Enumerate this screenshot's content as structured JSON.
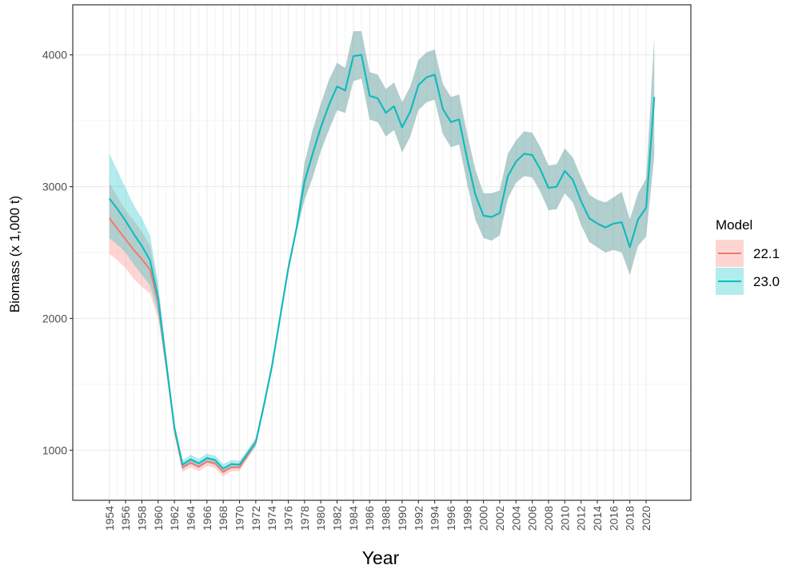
{
  "chart_data": {
    "type": "line",
    "title": "",
    "xlabel": "Year",
    "ylabel": "Biomass (x 1,000 t)",
    "xlim": [
      1949.5,
      2025.5
    ],
    "ylim": [
      620,
      4380
    ],
    "x_ticks": [
      1954,
      1956,
      1958,
      1960,
      1962,
      1964,
      1966,
      1968,
      1970,
      1972,
      1974,
      1976,
      1978,
      1980,
      1982,
      1984,
      1986,
      1988,
      1990,
      1992,
      1994,
      1996,
      1998,
      2000,
      2002,
      2004,
      2006,
      2008,
      2010,
      2012,
      2014,
      2016,
      2018,
      2020
    ],
    "y_ticks": [
      1000,
      2000,
      3000,
      4000
    ],
    "grid": true,
    "legend": {
      "title": "Model",
      "position": "right"
    },
    "x": [
      1954,
      1955,
      1956,
      1957,
      1958,
      1959,
      1960,
      1961,
      1962,
      1963,
      1964,
      1965,
      1966,
      1967,
      1968,
      1969,
      1970,
      1971,
      1972,
      1973,
      1974,
      1975,
      1976,
      1977,
      1978,
      1979,
      1980,
      1981,
      1982,
      1983,
      1984,
      1985,
      1986,
      1987,
      1988,
      1989,
      1990,
      1991,
      1992,
      1993,
      1994,
      1995,
      1996,
      1997,
      1998,
      1999,
      2000,
      2001,
      2002,
      2003,
      2004,
      2005,
      2006,
      2007,
      2008,
      2009,
      2010,
      2011,
      2012,
      2013,
      2014,
      2015,
      2016,
      2017,
      2018,
      2019,
      2020,
      2021
    ],
    "series": [
      {
        "name": "22.1",
        "color": "#F8766D",
        "fill": "#F8766D",
        "values": [
          2760,
          2680,
          2600,
          2520,
          2450,
          2370,
          2120,
          1650,
          1160,
          870,
          905,
          875,
          915,
          900,
          835,
          870,
          870,
          965,
          1060,
          1340,
          1640,
          2010,
          2380,
          2680,
          3040,
          3250,
          3450,
          3620,
          3760,
          3730,
          3990,
          4000,
          3690,
          3670,
          3560,
          3610,
          3450,
          3570,
          3770,
          3830,
          3850,
          3590,
          3490,
          3510,
          3210,
          2940,
          2780,
          2770,
          2800,
          3080,
          3190,
          3250,
          3240,
          3130,
          2990,
          3000,
          3120,
          3050,
          2890,
          2760,
          2720,
          2690,
          2720,
          2730,
          2540,
          2750,
          2840,
          3680
        ],
        "lower": [
          2490,
          2440,
          2380,
          2300,
          2240,
          2190,
          2000,
          1590,
          1120,
          835,
          870,
          840,
          880,
          865,
          800,
          840,
          840,
          935,
          1030,
          1310,
          1610,
          1980,
          2350,
          2650,
          2900,
          3070,
          3270,
          3430,
          3580,
          3560,
          3800,
          3820,
          3510,
          3490,
          3380,
          3430,
          3260,
          3380,
          3580,
          3640,
          3660,
          3400,
          3300,
          3320,
          3020,
          2750,
          2610,
          2590,
          2630,
          2910,
          3030,
          3080,
          3070,
          2960,
          2820,
          2830,
          2950,
          2880,
          2710,
          2580,
          2540,
          2500,
          2520,
          2500,
          2330,
          2550,
          2620,
          3230
        ],
        "upper": [
          3030,
          2920,
          2820,
          2740,
          2660,
          2550,
          2240,
          1710,
          1200,
          905,
          940,
          910,
          950,
          935,
          870,
          900,
          900,
          995,
          1090,
          1370,
          1670,
          2040,
          2410,
          2710,
          3180,
          3430,
          3630,
          3810,
          3940,
          3900,
          4180,
          4180,
          3870,
          3850,
          3740,
          3790,
          3640,
          3760,
          3960,
          4020,
          4040,
          3780,
          3680,
          3700,
          3400,
          3130,
          2950,
          2950,
          2970,
          3250,
          3350,
          3420,
          3410,
          3300,
          3160,
          3170,
          3290,
          3220,
          3070,
          2940,
          2900,
          2880,
          2920,
          2960,
          2750,
          2950,
          3060,
          4130
        ]
      },
      {
        "name": "23.0",
        "color": "#00BFC4",
        "fill": "#00BFC4",
        "values": [
          2910,
          2830,
          2740,
          2640,
          2550,
          2440,
          2150,
          1660,
          1170,
          890,
          930,
          900,
          940,
          925,
          860,
          895,
          890,
          975,
          1060,
          1340,
          1640,
          2010,
          2380,
          2680,
          3040,
          3250,
          3450,
          3620,
          3760,
          3730,
          3990,
          4000,
          3690,
          3670,
          3560,
          3610,
          3450,
          3570,
          3770,
          3830,
          3850,
          3590,
          3490,
          3510,
          3210,
          2940,
          2780,
          2770,
          2800,
          3080,
          3190,
          3250,
          3240,
          3130,
          2990,
          3000,
          3120,
          3050,
          2890,
          2760,
          2720,
          2690,
          2720,
          2730,
          2540,
          2750,
          2840,
          3680
        ],
        "lower": [
          2610,
          2560,
          2500,
          2410,
          2330,
          2250,
          2030,
          1600,
          1130,
          855,
          895,
          865,
          905,
          890,
          825,
          865,
          860,
          945,
          1030,
          1310,
          1610,
          1980,
          2350,
          2650,
          2900,
          3070,
          3270,
          3430,
          3580,
          3560,
          3800,
          3820,
          3510,
          3490,
          3380,
          3430,
          3260,
          3380,
          3580,
          3640,
          3660,
          3400,
          3300,
          3320,
          3020,
          2750,
          2610,
          2590,
          2630,
          2910,
          3030,
          3080,
          3070,
          2960,
          2820,
          2830,
          2950,
          2880,
          2710,
          2580,
          2540,
          2500,
          2520,
          2500,
          2330,
          2550,
          2620,
          3230
        ],
        "upper": [
          3250,
          3120,
          2990,
          2860,
          2760,
          2630,
          2270,
          1720,
          1210,
          925,
          965,
          935,
          975,
          960,
          895,
          925,
          920,
          1005,
          1090,
          1370,
          1670,
          2040,
          2410,
          2710,
          3180,
          3430,
          3630,
          3810,
          3940,
          3900,
          4180,
          4180,
          3870,
          3850,
          3740,
          3790,
          3640,
          3760,
          3960,
          4020,
          4040,
          3780,
          3680,
          3700,
          3400,
          3130,
          2950,
          2950,
          2970,
          3250,
          3350,
          3420,
          3410,
          3300,
          3160,
          3170,
          3290,
          3220,
          3070,
          2940,
          2900,
          2880,
          2920,
          2960,
          2750,
          2950,
          3060,
          4130
        ]
      }
    ]
  }
}
